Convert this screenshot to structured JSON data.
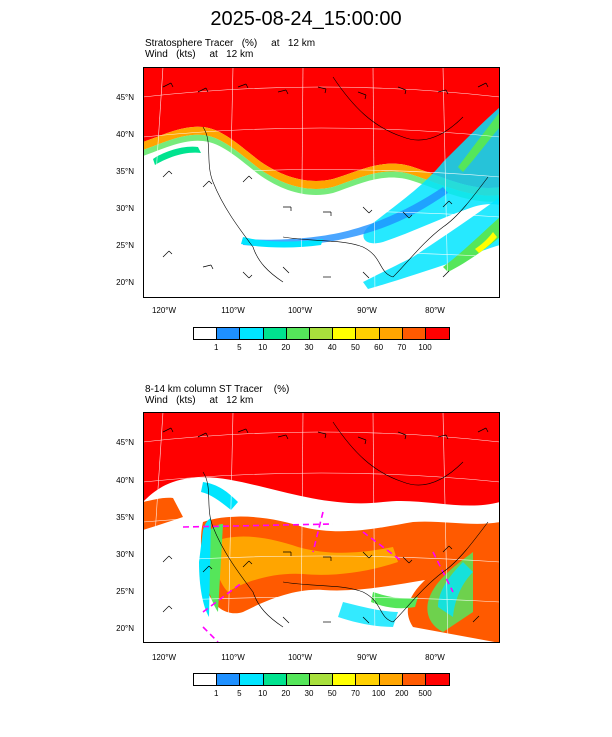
{
  "title": "2025-08-24_15:00:00",
  "panels": [
    {
      "label_line1": "Stratosphere Tracer   (%)     at   12 km",
      "label_line2": "Wind   (kts)     at   12 km",
      "lat_labels": [
        "45°N",
        "40°N",
        "35°N",
        "30°N",
        "25°N",
        "20°N"
      ],
      "lon_labels": [
        "120°W",
        "110°W",
        "100°W",
        "90°W",
        "80°W"
      ],
      "colorbar_labels": [
        "1",
        "5",
        "10",
        "20",
        "30",
        "40",
        "50",
        "60",
        "70",
        "100"
      ]
    },
    {
      "label_line1": "8-14 km column ST Tracer    (%)",
      "label_line2": "Wind   (kts)     at   12 km",
      "lat_labels": [
        "45°N",
        "40°N",
        "35°N",
        "30°N",
        "25°N",
        "20°N"
      ],
      "lon_labels": [
        "120°W",
        "110°W",
        "100°W",
        "90°W",
        "80°W"
      ],
      "colorbar_labels": [
        "1",
        "5",
        "10",
        "20",
        "30",
        "50",
        "70",
        "100",
        "200",
        "500"
      ]
    }
  ],
  "colorbar_colors": [
    "#ffffff",
    "#1e90ff",
    "#00e5ff",
    "#00e38f",
    "#55e65a",
    "#a8e03c",
    "#ffff00",
    "#ffd000",
    "#ffa500",
    "#ff5a00",
    "#ff0000"
  ]
}
